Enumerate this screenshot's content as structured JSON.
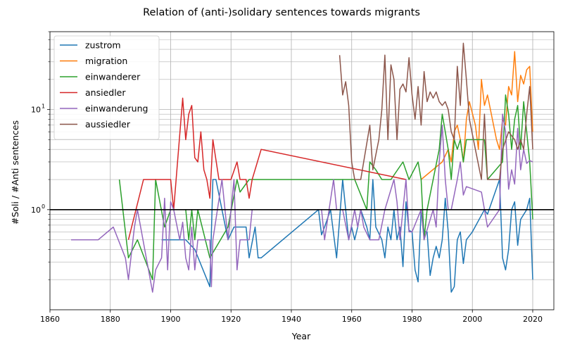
{
  "chart_data": {
    "type": "line",
    "title": "Relation of (anti-)solidary sentences towards migrants",
    "xlabel": "Year",
    "ylabel": "#Soli / #Anti sentences",
    "xlim": [
      1860,
      2027
    ],
    "ylim": [
      0.1,
      60
    ],
    "yscale": "log",
    "grid": "both major and minor",
    "legend_position": "upper-left",
    "x_ticks": [
      1860,
      1880,
      1900,
      1920,
      1940,
      1960,
      1980,
      2000,
      2020
    ],
    "y_ticks": [
      {
        "value": 1,
        "label": "10",
        "exp": "0"
      },
      {
        "value": 10,
        "label": "10",
        "exp": "1"
      }
    ],
    "reference_line": {
      "y": 1,
      "color": "#000000"
    },
    "series": [
      {
        "name": "zustrom",
        "color": "#1f77b4",
        "points": [
          [
            1897,
            0.5
          ],
          [
            1900,
            0.5
          ],
          [
            1905,
            0.5
          ],
          [
            1908,
            0.4
          ],
          [
            1913,
            0.17
          ],
          [
            1914,
            2
          ],
          [
            1915,
            2
          ],
          [
            1919,
            0.5
          ],
          [
            1921,
            0.67
          ],
          [
            1925,
            0.67
          ],
          [
            1926,
            0.33
          ],
          [
            1928,
            0.67
          ],
          [
            1929,
            0.33
          ],
          [
            1930,
            0.33
          ],
          [
            1949,
            1
          ],
          [
            1950,
            0.56
          ],
          [
            1951,
            0.67
          ],
          [
            1953,
            1
          ],
          [
            1955,
            0.33
          ],
          [
            1957,
            2
          ],
          [
            1958,
            1
          ],
          [
            1959,
            0.5
          ],
          [
            1960,
            0.67
          ],
          [
            1961,
            0.5
          ],
          [
            1962,
            0.67
          ],
          [
            1963,
            1
          ],
          [
            1965,
            0.67
          ],
          [
            1966,
            0.5
          ],
          [
            1967,
            2
          ],
          [
            1968,
            0.67
          ],
          [
            1970,
            0.5
          ],
          [
            1971,
            0.33
          ],
          [
            1972,
            0.67
          ],
          [
            1973,
            0.5
          ],
          [
            1974,
            1
          ],
          [
            1975,
            0.5
          ],
          [
            1976,
            0.67
          ],
          [
            1977,
            0.27
          ],
          [
            1978,
            1.2
          ],
          [
            1979,
            0.62
          ],
          [
            1980,
            0.6
          ],
          [
            1981,
            0.25
          ],
          [
            1982,
            0.19
          ],
          [
            1983,
            1
          ],
          [
            1984,
            0.6
          ],
          [
            1985,
            0.6
          ],
          [
            1986,
            0.22
          ],
          [
            1987,
            0.33
          ],
          [
            1988,
            0.43
          ],
          [
            1989,
            0.33
          ],
          [
            1990,
            0.5
          ],
          [
            1991,
            1.3
          ],
          [
            1992,
            0.6
          ],
          [
            1993,
            0.15
          ],
          [
            1994,
            0.17
          ],
          [
            1995,
            0.5
          ],
          [
            1996,
            0.6
          ],
          [
            1997,
            0.29
          ],
          [
            1998,
            0.5
          ],
          [
            2000,
            0.6
          ],
          [
            2004,
            1
          ],
          [
            2005,
            0.9
          ],
          [
            2009,
            2
          ],
          [
            2010,
            0.33
          ],
          [
            2011,
            0.25
          ],
          [
            2012,
            0.4
          ],
          [
            2013,
            1
          ],
          [
            2014,
            1.2
          ],
          [
            2015,
            0.44
          ],
          [
            2016,
            0.8
          ],
          [
            2018,
            1
          ],
          [
            2019,
            1.3
          ],
          [
            2020,
            0.2
          ]
        ]
      },
      {
        "name": "migration",
        "color": "#ff7f0e",
        "points": [
          [
            1983,
            2
          ],
          [
            1990,
            3
          ],
          [
            1992,
            4
          ],
          [
            1993,
            3
          ],
          [
            1994,
            6
          ],
          [
            1995,
            7
          ],
          [
            1996,
            5
          ],
          [
            1997,
            3
          ],
          [
            1998,
            8
          ],
          [
            1999,
            12
          ],
          [
            2001,
            7
          ],
          [
            2002,
            4
          ],
          [
            2003,
            20
          ],
          [
            2004,
            11
          ],
          [
            2005,
            14
          ],
          [
            2007,
            7
          ],
          [
            2008,
            5
          ],
          [
            2009,
            4
          ],
          [
            2010,
            8
          ],
          [
            2011,
            7
          ],
          [
            2012,
            17
          ],
          [
            2013,
            14
          ],
          [
            2014,
            38
          ],
          [
            2015,
            12
          ],
          [
            2016,
            22
          ],
          [
            2017,
            18
          ],
          [
            2018,
            25
          ],
          [
            2019,
            27
          ],
          [
            2020,
            6
          ]
        ]
      },
      {
        "name": "einwanderer",
        "color": "#2ca02c",
        "points": [
          [
            1883,
            2
          ],
          [
            1886,
            0.33
          ],
          [
            1889,
            0.5
          ],
          [
            1894,
            0.2
          ],
          [
            1895,
            2
          ],
          [
            1898,
            0.67
          ],
          [
            1900,
            1
          ],
          [
            1905,
            1
          ],
          [
            1906,
            0.5
          ],
          [
            1907,
            1
          ],
          [
            1908,
            0.5
          ],
          [
            1909,
            1
          ],
          [
            1913,
            0.33
          ],
          [
            1919,
            0.67
          ],
          [
            1922,
            2
          ],
          [
            1923,
            1.5
          ],
          [
            1926,
            2
          ],
          [
            1945,
            2
          ],
          [
            1961,
            2
          ],
          [
            1965,
            1
          ],
          [
            1966,
            3
          ],
          [
            1968,
            2.5
          ],
          [
            1970,
            2
          ],
          [
            1973,
            2
          ],
          [
            1977,
            3
          ],
          [
            1979,
            2
          ],
          [
            1982,
            3
          ],
          [
            1983,
            2
          ],
          [
            1984,
            0.5
          ],
          [
            1985,
            1
          ],
          [
            1989,
            4
          ],
          [
            1990,
            9
          ],
          [
            1991,
            6
          ],
          [
            1992,
            4
          ],
          [
            1993,
            2
          ],
          [
            1994,
            5
          ],
          [
            1995,
            4
          ],
          [
            1996,
            5
          ],
          [
            1997,
            3
          ],
          [
            1998,
            5
          ],
          [
            2004,
            5
          ],
          [
            2005,
            2
          ],
          [
            2010,
            3
          ],
          [
            2011,
            14
          ],
          [
            2012,
            9
          ],
          [
            2013,
            4
          ],
          [
            2014,
            8
          ],
          [
            2015,
            11
          ],
          [
            2016,
            4
          ],
          [
            2017,
            12
          ],
          [
            2018,
            6
          ],
          [
            2019,
            3
          ],
          [
            2020,
            0.8
          ]
        ]
      },
      {
        "name": "ansiedler",
        "color": "#d62728",
        "points": [
          [
            1886,
            0.5
          ],
          [
            1891,
            2
          ],
          [
            1900,
            2
          ],
          [
            1901,
            1
          ],
          [
            1904,
            13
          ],
          [
            1905,
            5
          ],
          [
            1906,
            9
          ],
          [
            1907,
            11
          ],
          [
            1908,
            3.3
          ],
          [
            1909,
            3
          ],
          [
            1910,
            6
          ],
          [
            1911,
            2.5
          ],
          [
            1912,
            2
          ],
          [
            1913,
            1.3
          ],
          [
            1914,
            5
          ],
          [
            1916,
            2
          ],
          [
            1920,
            2
          ],
          [
            1922,
            3
          ],
          [
            1923,
            2
          ],
          [
            1925,
            2
          ],
          [
            1926,
            1.3
          ],
          [
            1927,
            2
          ],
          [
            1930,
            4
          ],
          [
            1978,
            2
          ]
        ]
      },
      {
        "name": "einwanderung",
        "color": "#9467bd",
        "points": [
          [
            1867,
            0.5
          ],
          [
            1876,
            0.5
          ],
          [
            1881,
            0.67
          ],
          [
            1885,
            0.33
          ],
          [
            1886,
            0.2
          ],
          [
            1888,
            0.67
          ],
          [
            1889,
            1
          ],
          [
            1894,
            0.15
          ],
          [
            1895,
            0.25
          ],
          [
            1897,
            0.33
          ],
          [
            1898,
            1.3
          ],
          [
            1899,
            0.25
          ],
          [
            1900,
            1.2
          ],
          [
            1901,
            1
          ],
          [
            1903,
            0.5
          ],
          [
            1904,
            0.75
          ],
          [
            1905,
            0.33
          ],
          [
            1906,
            0.25
          ],
          [
            1907,
            0.67
          ],
          [
            1908,
            0.25
          ],
          [
            1909,
            0.5
          ],
          [
            1913,
            0.5
          ],
          [
            1913.5,
            0.17
          ],
          [
            1914,
            0.5
          ],
          [
            1917,
            2
          ],
          [
            1918,
            1
          ],
          [
            1919,
            0.5
          ],
          [
            1921,
            2
          ],
          [
            1922,
            0.25
          ],
          [
            1923,
            0.5
          ],
          [
            1926,
            0.5
          ],
          [
            1927,
            1
          ],
          [
            1950,
            1
          ],
          [
            1951,
            0.5
          ],
          [
            1954,
            2
          ],
          [
            1955,
            1
          ],
          [
            1957,
            1
          ],
          [
            1959,
            0.5
          ],
          [
            1961,
            1
          ],
          [
            1962,
            0.67
          ],
          [
            1963,
            1
          ],
          [
            1964,
            0.67
          ],
          [
            1966,
            0.5
          ],
          [
            1969,
            0.5
          ],
          [
            1971,
            1
          ],
          [
            1974,
            2
          ],
          [
            1975,
            1.2
          ],
          [
            1976,
            0.5
          ],
          [
            1978,
            2
          ],
          [
            1979,
            0.6
          ],
          [
            1980,
            0.6
          ],
          [
            1983,
            1
          ],
          [
            1984,
            0.5
          ],
          [
            1987,
            1
          ],
          [
            1988,
            0.67
          ],
          [
            1989,
            3
          ],
          [
            1990,
            7
          ],
          [
            1991,
            2
          ],
          [
            1992,
            1
          ],
          [
            1993,
            1
          ],
          [
            1995,
            2
          ],
          [
            1996,
            3
          ],
          [
            1997,
            1.4
          ],
          [
            1998,
            1.7
          ],
          [
            2003,
            1.5
          ],
          [
            2005,
            0.67
          ],
          [
            2009,
            1
          ],
          [
            2010,
            9
          ],
          [
            2011,
            6
          ],
          [
            2012,
            1.6
          ],
          [
            2013,
            2.5
          ],
          [
            2014,
            1.8
          ],
          [
            2015,
            6.5
          ],
          [
            2016,
            2.5
          ],
          [
            2017,
            4
          ],
          [
            2018,
            2.9
          ],
          [
            2019,
            3.1
          ],
          [
            2020,
            3
          ]
        ]
      },
      {
        "name": "aussiedler",
        "color": "#8c564b",
        "points": [
          [
            1956,
            35
          ],
          [
            1957,
            14
          ],
          [
            1958,
            19
          ],
          [
            1959,
            11
          ],
          [
            1960,
            3
          ],
          [
            1961,
            2
          ],
          [
            1963,
            2
          ],
          [
            1966,
            7
          ],
          [
            1967,
            2.5
          ],
          [
            1969,
            5
          ],
          [
            1970,
            10
          ],
          [
            1971,
            35
          ],
          [
            1972,
            5
          ],
          [
            1973,
            28
          ],
          [
            1974,
            20
          ],
          [
            1975,
            5
          ],
          [
            1976,
            16
          ],
          [
            1977,
            18
          ],
          [
            1978,
            15
          ],
          [
            1979,
            33
          ],
          [
            1980,
            14
          ],
          [
            1981,
            8
          ],
          [
            1982,
            17
          ],
          [
            1983,
            7
          ],
          [
            1984,
            24
          ],
          [
            1985,
            12
          ],
          [
            1986,
            15
          ],
          [
            1987,
            13
          ],
          [
            1988,
            15
          ],
          [
            1989,
            12
          ],
          [
            1990,
            11
          ],
          [
            1991,
            12
          ],
          [
            1992,
            10
          ],
          [
            1993,
            6
          ],
          [
            1994,
            5
          ],
          [
            1995,
            27
          ],
          [
            1996,
            11
          ],
          [
            1997,
            46
          ],
          [
            1998,
            20
          ],
          [
            1999,
            8
          ],
          [
            2001,
            4
          ],
          [
            2003,
            2
          ],
          [
            2004,
            9
          ],
          [
            2005,
            2
          ],
          [
            2009,
            2
          ],
          [
            2010,
            4
          ],
          [
            2012,
            6
          ],
          [
            2014,
            5
          ],
          [
            2015,
            4
          ],
          [
            2016,
            5
          ],
          [
            2017,
            4
          ],
          [
            2018,
            9
          ],
          [
            2019,
            17
          ],
          [
            2020,
            4
          ]
        ]
      }
    ]
  }
}
